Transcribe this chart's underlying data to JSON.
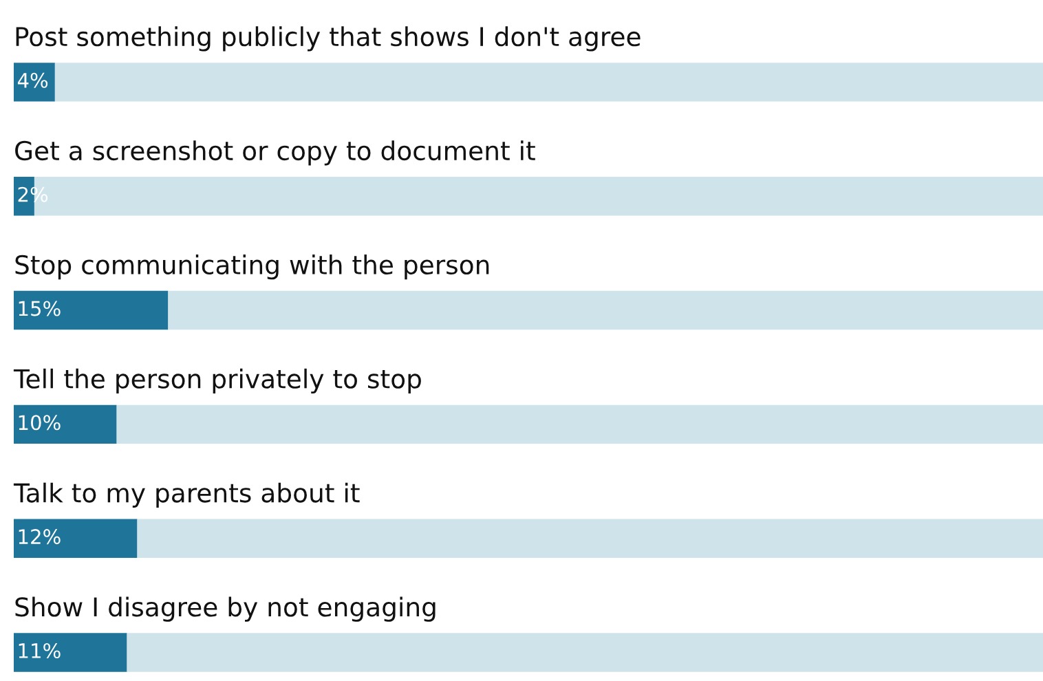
{
  "chart_data": {
    "type": "bar",
    "orientation": "horizontal",
    "stacked": true,
    "categories": [
      "Post something publicly that shows I don't agree",
      "Get a screenshot or copy to document it",
      "Stop communicating with the person",
      "Tell the person privately to stop",
      "Talk to my parents about it",
      "Show I disagree by not engaging"
    ],
    "series": [
      {
        "color": "#1f7499",
        "values": [
          4,
          2,
          15,
          10,
          12,
          11
        ],
        "value_labels": [
          "4%",
          "2%",
          "15%",
          "10%",
          "12%",
          "11%"
        ]
      },
      {
        "color": "#cfe3ea",
        "values": [
          96,
          98,
          85,
          90,
          88,
          89
        ]
      }
    ],
    "xlim": [
      0,
      100
    ],
    "legend": false
  }
}
